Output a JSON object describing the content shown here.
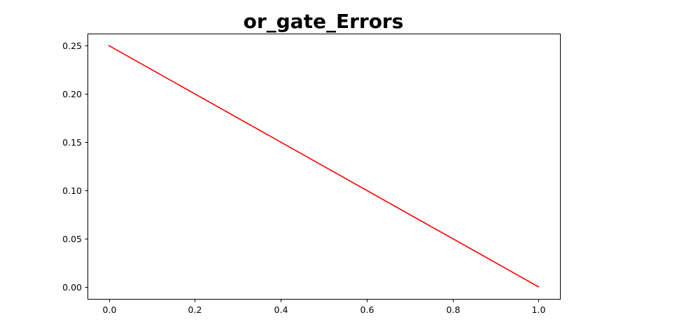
{
  "chart_data": {
    "type": "line",
    "title": "or_gate_Errors",
    "xlabel": "",
    "ylabel": "",
    "xlim": [
      -0.05,
      1.05
    ],
    "ylim": [
      -0.0125,
      0.2625
    ],
    "xticks": [
      0.0,
      0.2,
      0.4,
      0.6,
      0.8,
      1.0
    ],
    "xtick_labels": [
      "0.0",
      "0.2",
      "0.4",
      "0.6",
      "0.8",
      "1.0"
    ],
    "yticks": [
      0.0,
      0.05,
      0.1,
      0.15,
      0.2,
      0.25
    ],
    "ytick_labels": [
      "0.00",
      "0.05",
      "0.10",
      "0.15",
      "0.20",
      "0.25"
    ],
    "grid": false,
    "legend": "none",
    "series": [
      {
        "color": "#ff0000",
        "x": [
          0.0,
          1.0
        ],
        "y": [
          0.25,
          0.0
        ]
      }
    ]
  }
}
